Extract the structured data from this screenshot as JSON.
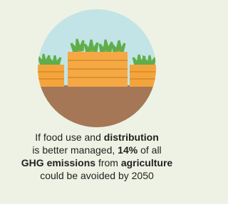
{
  "caption": {
    "lines": [
      [
        {
          "text": "If food use and ",
          "bold": false
        },
        {
          "text": "distribution",
          "bold": true
        }
      ],
      [
        {
          "text": "is better managed, ",
          "bold": false
        },
        {
          "text": "14%",
          "bold": true
        },
        {
          "text": " of all",
          "bold": false
        }
      ],
      [
        {
          "text": "GHG emissions",
          "bold": true
        },
        {
          "text": " from ",
          "bold": false
        },
        {
          "text": "agriculture",
          "bold": true
        }
      ],
      [
        {
          "text": "could be avoided by 2050",
          "bold": false
        }
      ]
    ]
  }
}
